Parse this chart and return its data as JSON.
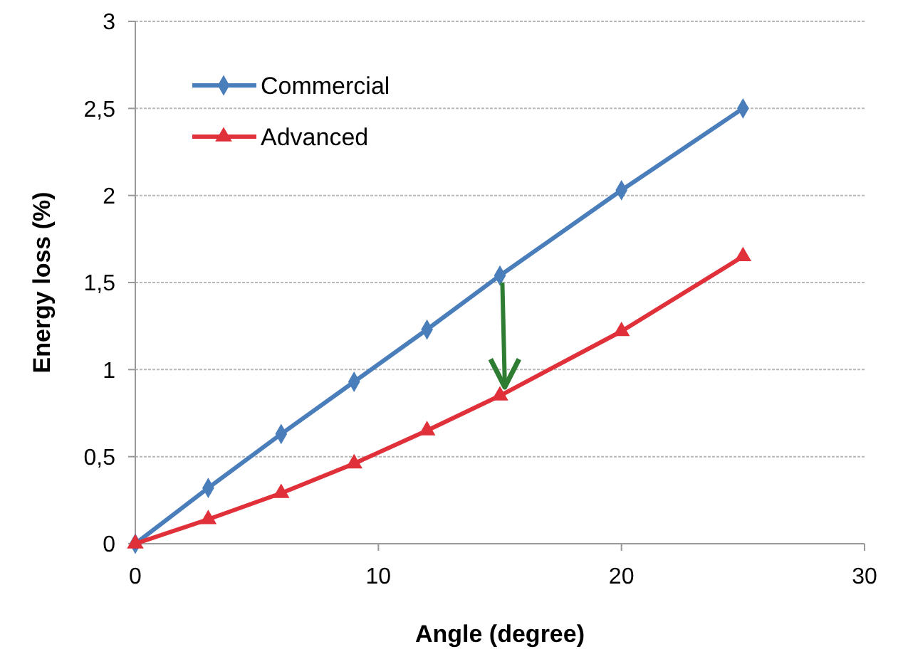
{
  "chart_data": {
    "type": "line",
    "xlabel": "Angle (degree)",
    "ylabel": "Energy loss (%)",
    "xlim": [
      0,
      30
    ],
    "xticks": [
      0,
      10,
      20,
      30
    ],
    "ylim": [
      0,
      3
    ],
    "yticks": [
      0,
      {
        "value": 0.5,
        "label": "0,5"
      },
      1,
      {
        "value": 1.5,
        "label": "1,5"
      },
      2,
      {
        "value": 2.5,
        "label": "2,5"
      },
      3
    ],
    "grid": "y",
    "legend": "top left",
    "series": [
      {
        "name": "Commercial",
        "color": "#4a7ebb",
        "marker": "diamond",
        "x": [
          0,
          3,
          6,
          9,
          12,
          15,
          20,
          25
        ],
        "values": [
          0,
          0.32,
          0.63,
          0.93,
          1.23,
          1.54,
          2.03,
          2.5
        ]
      },
      {
        "name": "Advanced",
        "color": "#e0303a",
        "marker": "triangle",
        "x": [
          0,
          3,
          6,
          9,
          12,
          15,
          20,
          25
        ],
        "values": [
          0,
          0.14,
          0.29,
          0.46,
          0.65,
          0.85,
          1.22,
          1.65
        ]
      }
    ]
  }
}
